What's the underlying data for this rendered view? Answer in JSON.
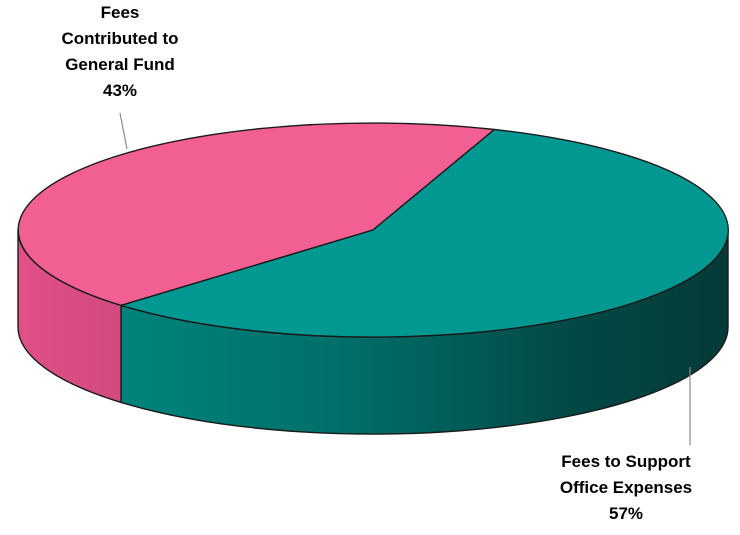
{
  "chart_data": {
    "type": "pie",
    "three_d": true,
    "slices": [
      {
        "name_lines": [
          "Fees",
          "Contributed to",
          "General Fund"
        ],
        "value": 43,
        "percent_label": "43%",
        "color": "#F25F93"
      },
      {
        "name_lines": [
          "Fees to Support",
          "Office Expenses"
        ],
        "value": 57,
        "percent_label": "57%",
        "color": "#009890"
      }
    ],
    "legend": "none",
    "data_labels": "outside with leader lines"
  }
}
